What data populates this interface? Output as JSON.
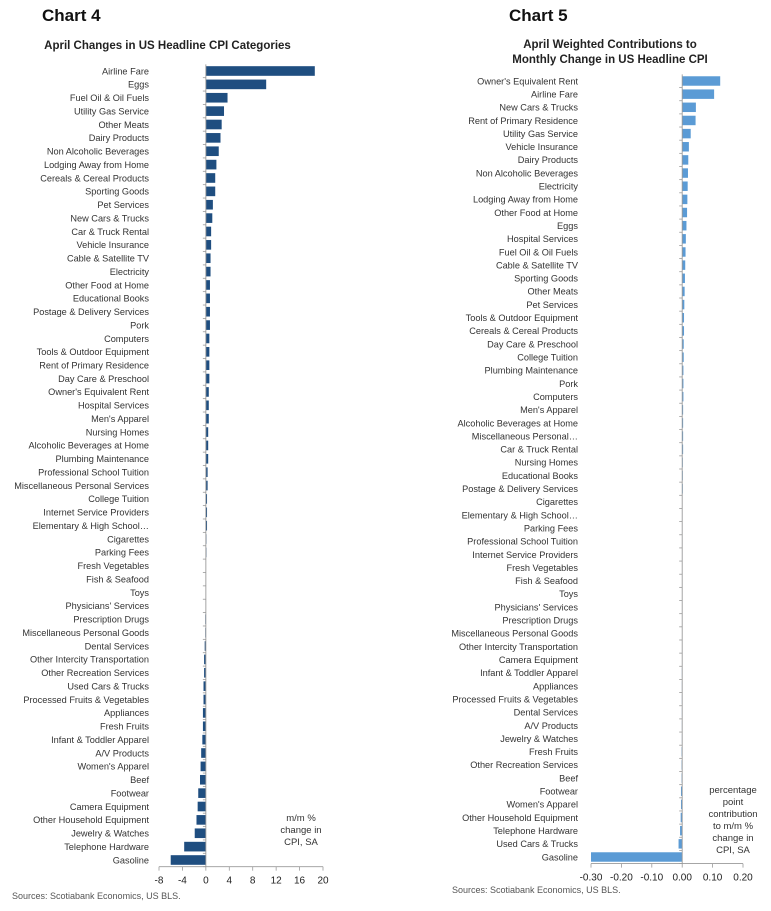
{
  "left_panel": {
    "heading": "Chart 4",
    "source": "Sources: Scotiabank Economics, US BLS.",
    "note": [
      "m/m %",
      "change in",
      "CPI, SA"
    ]
  },
  "right_panel": {
    "heading": "Chart 5",
    "source": "Sources: Scotiabank Economics, US BLS.",
    "note": [
      "percentage",
      "point",
      "contribution",
      "to m/m %",
      "change in",
      "CPI, SA"
    ]
  },
  "colors": {
    "left_bar": "#1f4e80",
    "right_bar": "#5b9bd5",
    "axis": "#9a9a9a"
  },
  "chart_data": [
    {
      "type": "bar",
      "orientation": "horizontal",
      "title": "April Changes in US Headline CPI Categories",
      "xlim": [
        -8,
        20
      ],
      "xticks": [
        -8,
        -4,
        0,
        4,
        8,
        12,
        16,
        20
      ],
      "xtick_labels": [
        "-8",
        "-4",
        "0",
        "4",
        "8",
        "12",
        "16",
        "20"
      ],
      "categories": [
        "Airline Fare",
        "Eggs",
        "Fuel Oil & Oil Fuels",
        "Utility Gas Service",
        "Other Meats",
        "Dairy Products",
        "Non Alcoholic Beverages",
        "Lodging Away from Home",
        "Cereals & Cereal Products",
        "Sporting Goods",
        "Pet Services",
        "New Cars & Trucks",
        "Car & Truck Rental",
        "Vehicle Insurance",
        "Cable & Satellite TV",
        "Electricity",
        "Other Food at Home",
        "Educational Books",
        "Postage & Delivery Services",
        "Pork",
        "Computers",
        "Tools & Outdoor Equipment",
        "Rent of Primary Residence",
        "Day Care & Preschool",
        "Owner's Equivalent Rent",
        "Hospital Services",
        "Men's Apparel",
        "Nursing Homes",
        "Alcoholic Beverages at Home",
        "Plumbing Maintenance",
        "Professional School Tuition",
        "Miscellaneous Personal Services",
        "College Tuition",
        "Internet Service Providers",
        "Elementary & High School…",
        "Cigarettes",
        "Parking Fees",
        "Fresh Vegetables",
        "Fish & Seafood",
        "Toys",
        "Physicians' Services",
        "Prescription Drugs",
        "Miscellaneous Personal Goods",
        "Dental Services",
        "Other Intercity Transportation",
        "Other Recreation Services",
        "Used Cars & Trucks",
        "Processed Fruits & Vegetables",
        "Appliances",
        "Fresh Fruits",
        "Infant & Toddler Apparel",
        "A/V Products",
        "Women's Apparel",
        "Beef",
        "Footwear",
        "Camera Equipment",
        "Other Household Equipment",
        "Jewelry & Watches",
        "Telephone Hardware",
        "Gasoline"
      ],
      "values": [
        18.6,
        10.3,
        3.7,
        3.1,
        2.7,
        2.5,
        2.2,
        1.8,
        1.6,
        1.6,
        1.2,
        1.1,
        0.9,
        0.9,
        0.8,
        0.8,
        0.7,
        0.7,
        0.7,
        0.7,
        0.6,
        0.6,
        0.6,
        0.6,
        0.5,
        0.5,
        0.5,
        0.4,
        0.4,
        0.4,
        0.3,
        0.3,
        0.2,
        0.2,
        0.2,
        0.1,
        0.1,
        0.0,
        0.0,
        0.0,
        0.0,
        -0.1,
        -0.1,
        -0.2,
        -0.3,
        -0.3,
        -0.4,
        -0.4,
        -0.5,
        -0.5,
        -0.6,
        -0.8,
        -0.9,
        -1.0,
        -1.3,
        -1.4,
        -1.6,
        -1.9,
        -3.7,
        -6.0
      ]
    },
    {
      "type": "bar",
      "orientation": "horizontal",
      "title": "April Weighted Contributions to Monthly Change in US Headline CPI",
      "title_lines": [
        "April Weighted Contributions to",
        "Monthly Change in US Headline CPI"
      ],
      "xlim": [
        -0.3,
        0.2
      ],
      "xticks": [
        -0.3,
        -0.2,
        -0.1,
        0.0,
        0.1,
        0.2
      ],
      "xtick_labels": [
        "-0.30",
        "-0.20",
        "-0.10",
        "0.00",
        "0.10",
        "0.20"
      ],
      "categories": [
        "Owner's Equivalent Rent",
        "Airline Fare",
        "New Cars & Trucks",
        "Rent of Primary Residence",
        "Utility Gas Service",
        "Vehicle Insurance",
        "Dairy Products",
        "Non Alcoholic Beverages",
        "Electricity",
        "Lodging Away from Home",
        "Other Food at Home",
        "Eggs",
        "Hospital Services",
        "Fuel Oil & Oil Fuels",
        "Cable & Satellite TV",
        "Sporting Goods",
        "Other Meats",
        "Pet Services",
        "Tools & Outdoor Equipment",
        "Cereals & Cereal Products",
        "Day Care & Preschool",
        "College Tuition",
        "Plumbing Maintenance",
        "Pork",
        "Computers",
        "Men's Apparel",
        "Alcoholic Beverages at Home",
        "Miscellaneous Personal…",
        "Car & Truck Rental",
        "Nursing Homes",
        "Educational Books",
        "Postage & Delivery Services",
        "Cigarettes",
        "Elementary & High School…",
        "Parking Fees",
        "Professional School Tuition",
        "Internet Service Providers",
        "Fresh Vegetables",
        "Fish & Seafood",
        "Toys",
        "Physicians' Services",
        "Prescription Drugs",
        "Miscellaneous Personal Goods",
        "Other Intercity Transportation",
        "Camera Equipment",
        "Infant & Toddler Apparel",
        "Appliances",
        "Processed Fruits & Vegetables",
        "Dental Services",
        "A/V Products",
        "Jewelry & Watches",
        "Fresh Fruits",
        "Other Recreation Services",
        "Beef",
        "Footwear",
        "Women's Apparel",
        "Other Household Equipment",
        "Telephone Hardware",
        "Used Cars & Trucks",
        "Gasoline"
      ],
      "values": [
        0.125,
        0.105,
        0.045,
        0.044,
        0.028,
        0.022,
        0.02,
        0.019,
        0.018,
        0.017,
        0.016,
        0.014,
        0.012,
        0.011,
        0.01,
        0.009,
        0.008,
        0.007,
        0.006,
        0.006,
        0.005,
        0.005,
        0.004,
        0.004,
        0.004,
        0.003,
        0.003,
        0.003,
        0.003,
        0.002,
        0.002,
        0.002,
        0.001,
        0.001,
        0.001,
        0.001,
        0.001,
        0.0,
        0.0,
        0.0,
        0.0,
        0.0,
        0.0,
        0.0,
        0.0,
        -0.001,
        -0.001,
        -0.001,
        -0.001,
        -0.001,
        -0.001,
        -0.002,
        -0.002,
        -0.002,
        -0.004,
        -0.004,
        -0.005,
        -0.007,
        -0.012,
        -0.3
      ]
    }
  ]
}
